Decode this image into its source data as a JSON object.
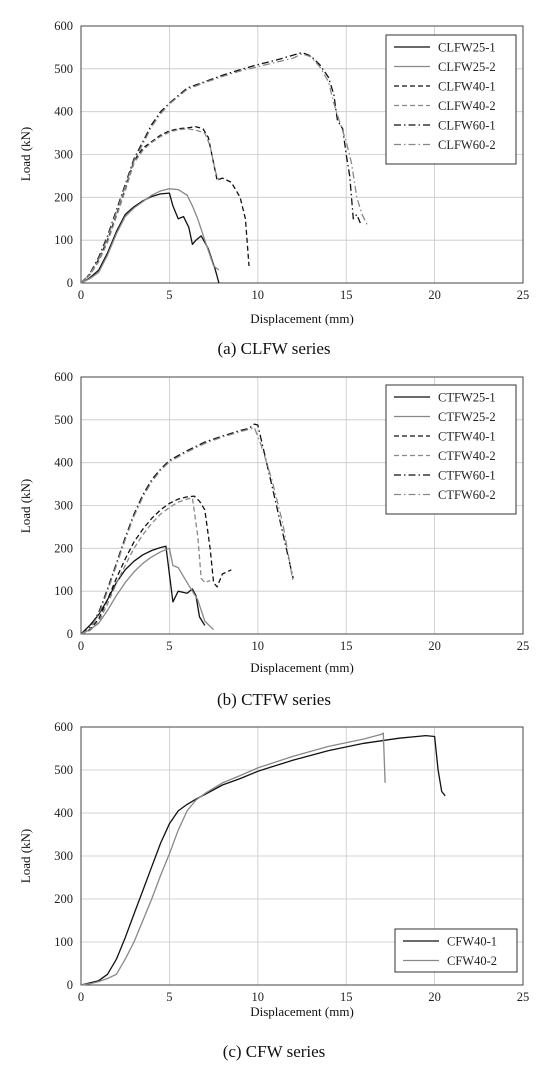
{
  "chart_data": [
    {
      "type": "line",
      "caption": "(a) CLFW series",
      "xlabel": "Displacement (mm)",
      "ylabel": "Load (kN)",
      "xlim": [
        0,
        25
      ],
      "ylim": [
        0,
        600
      ],
      "xticks": [
        0,
        5,
        10,
        15,
        20,
        25
      ],
      "yticks": [
        0,
        100,
        200,
        300,
        400,
        500,
        600
      ],
      "grid": true,
      "legend": "top-right",
      "series": [
        {
          "name": "CLFW25-1",
          "color": "#111111",
          "dash": "solid",
          "x": [
            0,
            0.5,
            1,
            1.5,
            2,
            2.5,
            3,
            3.5,
            4,
            4.5,
            5,
            5.2,
            5.5,
            5.8,
            6.1,
            6.3,
            6.5,
            6.8,
            7.2,
            7.6,
            7.8
          ],
          "y": [
            0,
            12,
            30,
            70,
            120,
            160,
            178,
            192,
            202,
            208,
            210,
            180,
            150,
            155,
            130,
            90,
            100,
            110,
            80,
            30,
            0
          ]
        },
        {
          "name": "CLFW25-2",
          "color": "#888888",
          "dash": "solid",
          "x": [
            0,
            0.5,
            1,
            1.5,
            2,
            2.5,
            3,
            3.5,
            4,
            4.5,
            5,
            5.5,
            6,
            6.3,
            6.6,
            7,
            7.5,
            7.8
          ],
          "y": [
            0,
            10,
            25,
            65,
            115,
            155,
            175,
            190,
            205,
            215,
            220,
            218,
            205,
            180,
            150,
            100,
            40,
            30
          ]
        },
        {
          "name": "CLFW40-1",
          "color": "#111111",
          "dash": "5 3",
          "x": [
            0,
            0.5,
            1,
            1.5,
            2,
            2.5,
            3,
            3.5,
            4,
            4.5,
            5,
            5.5,
            6,
            6.5,
            6.9,
            7.2,
            7.5,
            7.7,
            8,
            8.5,
            9,
            9.3,
            9.5
          ],
          "y": [
            0,
            20,
            55,
            100,
            160,
            220,
            285,
            315,
            330,
            345,
            355,
            360,
            362,
            365,
            360,
            340,
            280,
            240,
            245,
            235,
            200,
            150,
            40
          ]
        },
        {
          "name": "CLFW40-2",
          "color": "#888888",
          "dash": "5 3",
          "x": [
            0,
            0.5,
            1,
            1.5,
            2,
            2.5,
            3,
            3.5,
            4,
            4.5,
            5,
            5.5,
            6,
            6.5,
            7,
            7.3,
            7.6,
            7.8
          ],
          "y": [
            0,
            18,
            50,
            95,
            155,
            215,
            280,
            310,
            328,
            342,
            352,
            358,
            360,
            357,
            350,
            320,
            260,
            240
          ]
        },
        {
          "name": "CLFW60-1",
          "color": "#111111",
          "dash": "7 3 1.5 3",
          "x": [
            0,
            0.5,
            1,
            1.5,
            2,
            2.5,
            3,
            3.5,
            4,
            4.5,
            5,
            6,
            7,
            8,
            9,
            10,
            11,
            12,
            12.5,
            13,
            13.5,
            14,
            14.3,
            14.5,
            14.8,
            15,
            15.2,
            15.4,
            15.6,
            15.8
          ],
          "y": [
            0,
            22,
            60,
            110,
            170,
            230,
            290,
            330,
            370,
            400,
            420,
            455,
            470,
            485,
            498,
            510,
            520,
            532,
            538,
            530,
            510,
            480,
            440,
            380,
            360,
            300,
            250,
            150,
            160,
            140
          ]
        },
        {
          "name": "CLFW60-2",
          "color": "#888888",
          "dash": "7 3 1.5 3",
          "x": [
            0,
            0.5,
            1,
            1.5,
            2,
            2.5,
            3,
            3.5,
            4,
            4.5,
            5,
            6,
            7,
            8,
            9,
            10,
            11,
            12,
            12.5,
            13,
            13.5,
            14,
            14.3,
            14.6,
            15,
            15.3,
            15.6,
            15.9,
            16.2
          ],
          "y": [
            0,
            20,
            55,
            105,
            165,
            225,
            285,
            325,
            365,
            395,
            418,
            452,
            468,
            482,
            495,
            505,
            515,
            525,
            535,
            528,
            505,
            470,
            420,
            380,
            330,
            280,
            200,
            160,
            135
          ]
        }
      ]
    },
    {
      "type": "line",
      "caption": "(b) CTFW series",
      "xlabel": "Displacement (mm)",
      "ylabel": "Load (kN)",
      "xlim": [
        0,
        25
      ],
      "ylim": [
        0,
        600
      ],
      "xticks": [
        0,
        5,
        10,
        15,
        20,
        25
      ],
      "yticks": [
        0,
        100,
        200,
        300,
        400,
        500,
        600
      ],
      "grid": true,
      "legend": "top-right",
      "series": [
        {
          "name": "CTFW25-1",
          "color": "#111111",
          "dash": "solid",
          "x": [
            0,
            0.5,
            1,
            1.5,
            2,
            2.5,
            3,
            3.5,
            4,
            4.5,
            4.8,
            5.2,
            5.5,
            6,
            6.3,
            6.5,
            6.7,
            7
          ],
          "y": [
            0,
            20,
            45,
            80,
            120,
            150,
            170,
            185,
            195,
            202,
            205,
            75,
            100,
            95,
            105,
            90,
            40,
            20
          ]
        },
        {
          "name": "CTFW25-2",
          "color": "#888888",
          "dash": "solid",
          "x": [
            0,
            0.5,
            1,
            1.5,
            2,
            2.5,
            3,
            3.5,
            4,
            4.5,
            5,
            5.2,
            5.5,
            6,
            6.3,
            6.6,
            7,
            7.5
          ],
          "y": [
            0,
            10,
            25,
            55,
            90,
            120,
            145,
            165,
            180,
            192,
            200,
            160,
            155,
            120,
            100,
            80,
            30,
            10
          ]
        },
        {
          "name": "CTFW40-1",
          "color": "#111111",
          "dash": "5 3",
          "x": [
            0,
            0.5,
            1,
            1.5,
            2,
            2.5,
            3,
            3.5,
            4,
            4.5,
            5,
            5.5,
            6,
            6.4,
            6.7,
            7,
            7.3,
            7.5,
            7.7,
            8,
            8.5
          ],
          "y": [
            0,
            10,
            35,
            80,
            130,
            175,
            215,
            245,
            270,
            290,
            305,
            315,
            320,
            322,
            310,
            290,
            200,
            120,
            110,
            140,
            150
          ]
        },
        {
          "name": "CTFW40-2",
          "color": "#888888",
          "dash": "5 3",
          "x": [
            0,
            0.5,
            1,
            1.5,
            2,
            2.5,
            3,
            3.5,
            4,
            4.5,
            5,
            5.5,
            6,
            6.3,
            6.6,
            6.8,
            7,
            7.3
          ],
          "y": [
            0,
            8,
            28,
            70,
            118,
            160,
            200,
            232,
            258,
            280,
            295,
            308,
            315,
            318,
            230,
            130,
            120,
            125
          ]
        },
        {
          "name": "CTFW60-1",
          "color": "#111111",
          "dash": "7 3 1.5 3",
          "x": [
            0,
            0.5,
            1,
            1.5,
            2,
            2.5,
            3,
            3.5,
            4,
            4.5,
            5,
            6,
            7,
            8,
            9,
            9.5,
            9.8,
            10,
            10.5,
            11,
            11.5,
            12
          ],
          "y": [
            0,
            15,
            50,
            105,
            165,
            225,
            280,
            325,
            360,
            385,
            405,
            428,
            448,
            462,
            475,
            480,
            490,
            488,
            400,
            310,
            220,
            130
          ]
        },
        {
          "name": "CTFW60-2",
          "color": "#888888",
          "dash": "7 3 1.5 3",
          "x": [
            0,
            0.5,
            1,
            1.5,
            2,
            2.5,
            3,
            3.5,
            4,
            4.5,
            5,
            6,
            7,
            8,
            9,
            9.5,
            9.8,
            10.2,
            10.8,
            11.4,
            12
          ],
          "y": [
            0,
            12,
            45,
            100,
            160,
            220,
            275,
            320,
            355,
            382,
            402,
            425,
            445,
            460,
            472,
            478,
            482,
            440,
            360,
            260,
            120
          ]
        }
      ]
    },
    {
      "type": "line",
      "caption": "(c) CFW series",
      "xlabel": "Displacement (mm)",
      "ylabel": "Load (kN)",
      "xlim": [
        0,
        25
      ],
      "ylim": [
        0,
        600
      ],
      "xticks": [
        0,
        5,
        10,
        15,
        20,
        25
      ],
      "yticks": [
        0,
        100,
        200,
        300,
        400,
        500,
        600
      ],
      "grid": true,
      "legend": "bottom-right",
      "series": [
        {
          "name": "CFW40-1",
          "color": "#111111",
          "dash": "solid",
          "x": [
            0,
            0.5,
            1,
            1.5,
            2,
            2.5,
            3,
            3.5,
            4,
            4.5,
            5,
            5.5,
            6,
            6.5,
            7,
            8,
            9,
            10,
            12,
            14,
            16,
            18,
            19,
            19.5,
            20,
            20.2,
            20.4,
            20.6
          ],
          "y": [
            0,
            5,
            10,
            25,
            60,
            110,
            165,
            220,
            275,
            330,
            375,
            405,
            420,
            432,
            443,
            465,
            480,
            497,
            523,
            545,
            562,
            574,
            578,
            580,
            578,
            500,
            450,
            440
          ]
        },
        {
          "name": "CFW40-2",
          "color": "#888888",
          "dash": "solid",
          "x": [
            0,
            0.5,
            1,
            1.5,
            2,
            2.5,
            3,
            3.5,
            4,
            4.5,
            5,
            5.5,
            6,
            6.5,
            7,
            8,
            9,
            10,
            12,
            14,
            16,
            17,
            17.1,
            17.2
          ],
          "y": [
            0,
            3,
            8,
            15,
            25,
            60,
            100,
            150,
            200,
            255,
            305,
            360,
            405,
            430,
            445,
            470,
            487,
            505,
            532,
            555,
            572,
            583,
            586,
            470
          ]
        }
      ]
    }
  ]
}
